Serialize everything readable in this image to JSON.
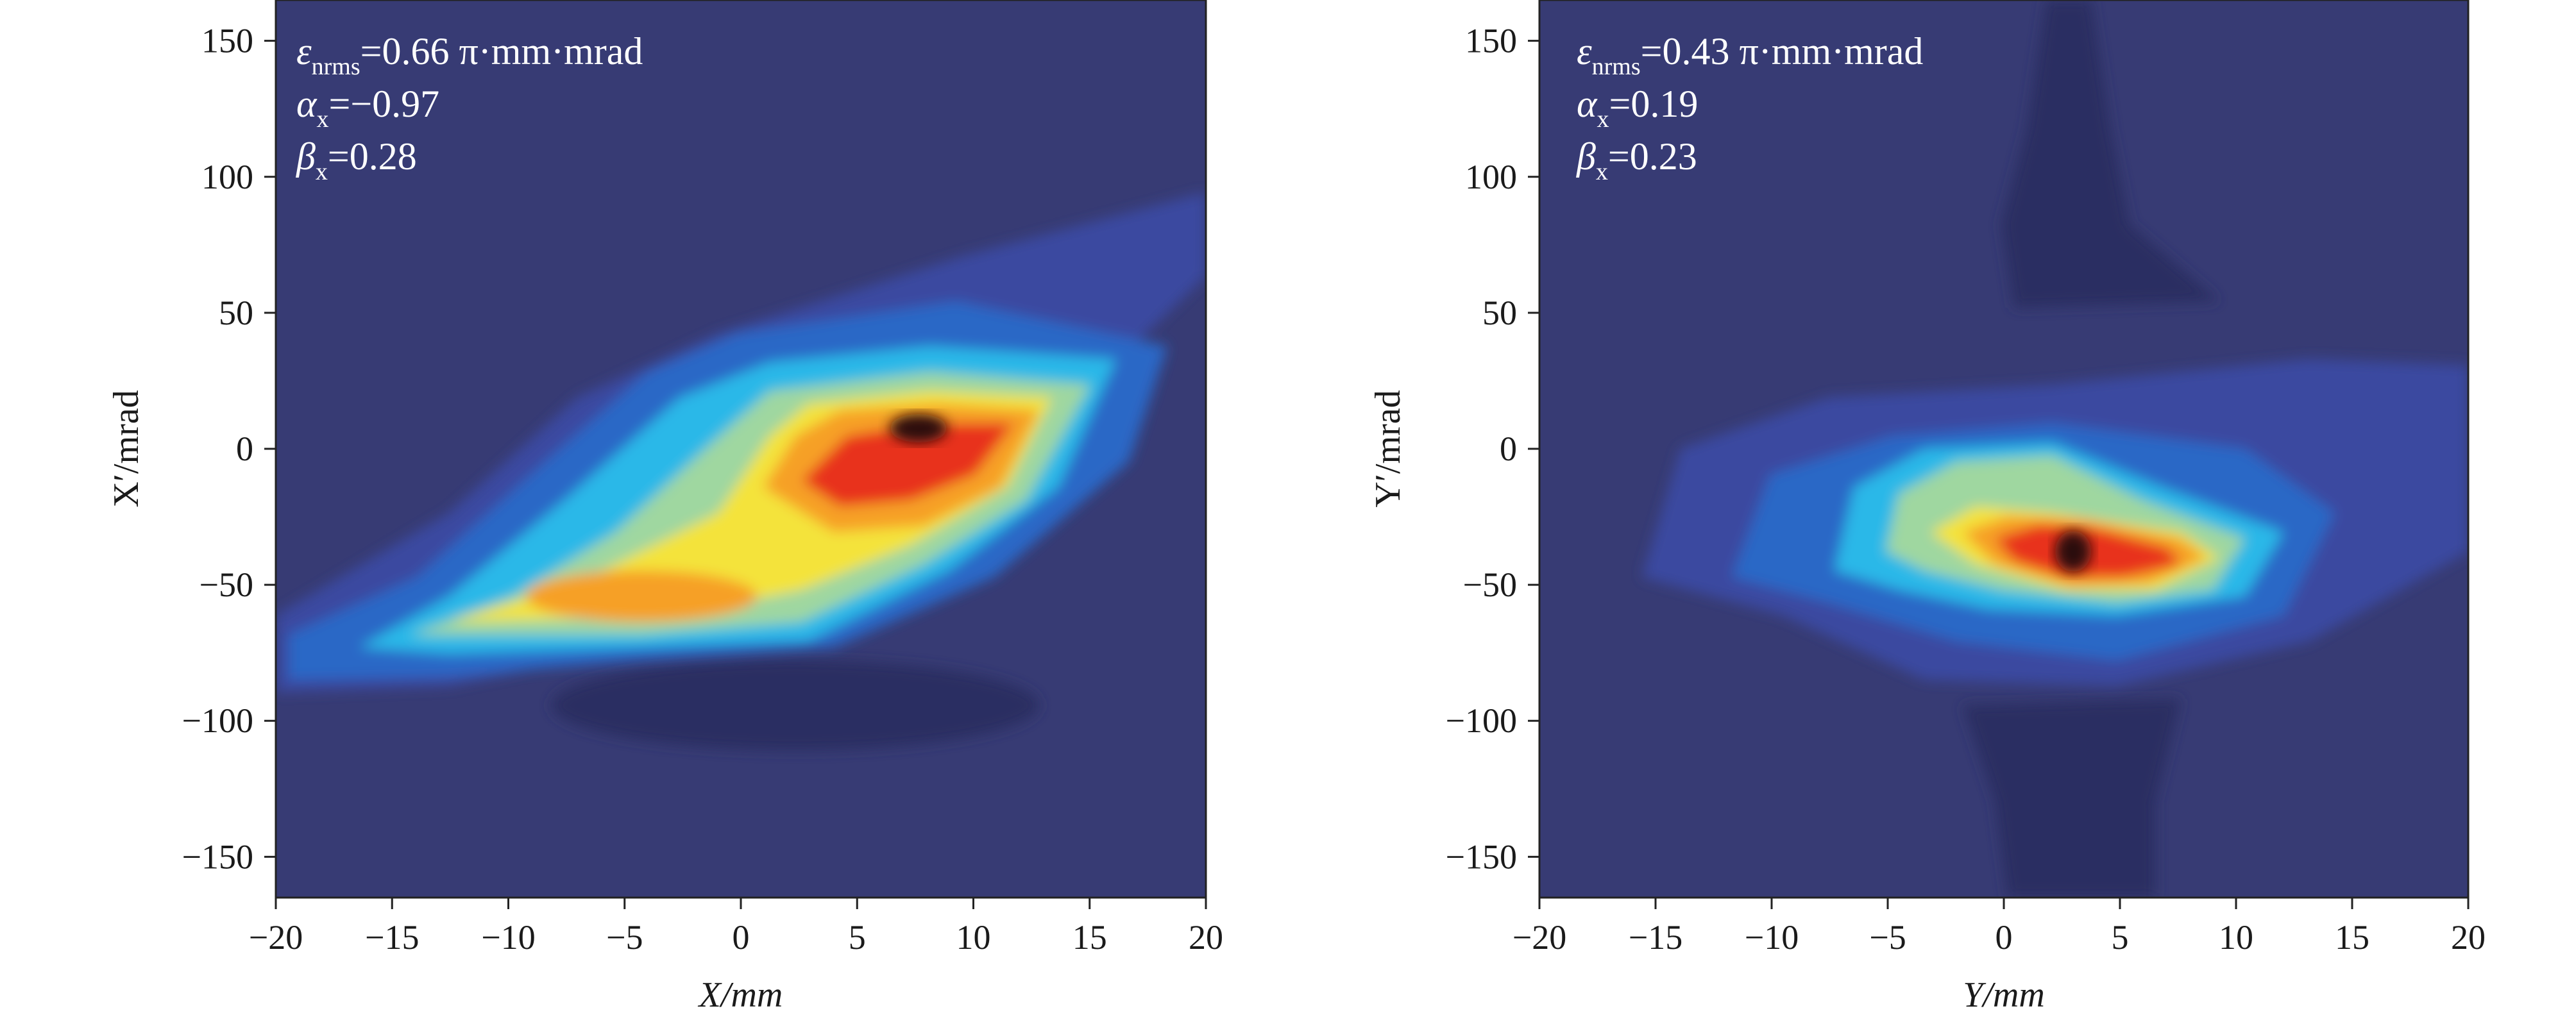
{
  "chart_data": [
    {
      "type": "heatmap",
      "xlabel": "X/mm",
      "ylabel": "X′/mrad",
      "xlim": [
        -20,
        20
      ],
      "ylim": [
        -165,
        165
      ],
      "xticks": [
        -20,
        -15,
        -10,
        -5,
        0,
        5,
        10,
        15,
        20
      ],
      "yticks": [
        -150,
        -100,
        -50,
        0,
        50,
        100,
        150
      ],
      "colormap": [
        "#2b2d5c",
        "#373b74",
        "#2a67c6",
        "#29b8e8",
        "#9fd7a0",
        "#f4e33a",
        "#f6a027",
        "#e8331f",
        "#2a0f0f"
      ],
      "annotations": {
        "emittance": {
          "symbol": "ε",
          "sub": "nrms",
          "value": "=0.66 π·mm·mrad"
        },
        "alpha": {
          "symbol": "α",
          "sub": "x",
          "value": "=−0.97"
        },
        "beta": {
          "symbol": "β",
          "sub": "x",
          "value": "=0.28"
        }
      },
      "peak": {
        "x": 8,
        "y": 7
      }
    },
    {
      "type": "heatmap",
      "xlabel": "Y/mm",
      "ylabel": "Y′/mrad",
      "xlim": [
        -20,
        20
      ],
      "ylim": [
        -165,
        165
      ],
      "xticks": [
        -20,
        -15,
        -10,
        -5,
        0,
        5,
        10,
        15,
        20
      ],
      "yticks": [
        -150,
        -100,
        -50,
        0,
        50,
        100,
        150
      ],
      "colormap": [
        "#2b2d5c",
        "#373b74",
        "#2a67c6",
        "#29b8e8",
        "#9fd7a0",
        "#f4e33a",
        "#f6a027",
        "#e8331f",
        "#2a0f0f"
      ],
      "annotations": {
        "emittance": {
          "symbol": "ε",
          "sub": "nrms",
          "value": "=0.43 π·mm·mrad"
        },
        "alpha": {
          "symbol": "α",
          "sub": "x",
          "value": "=0.19"
        },
        "beta": {
          "symbol": "β",
          "sub": "x",
          "value": "=0.23"
        }
      },
      "peak": {
        "x": 4,
        "y": -40
      }
    }
  ]
}
